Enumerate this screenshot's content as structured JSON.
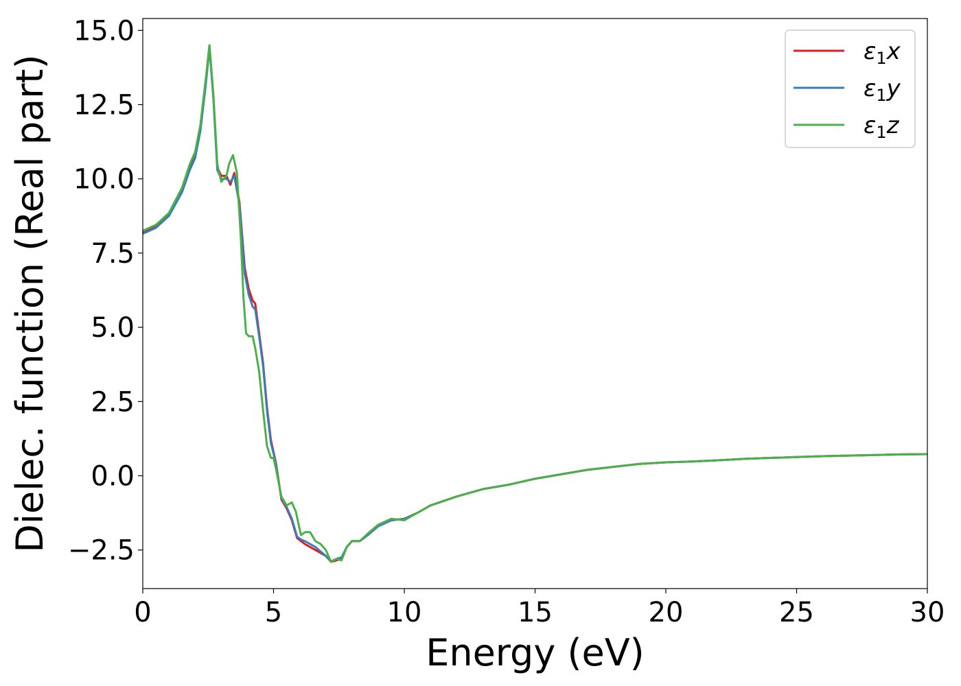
{
  "chart_data": {
    "type": "line",
    "xlabel": "Energy (eV)",
    "ylabel": "Dielec. function (Real part)",
    "xlim": [
      0,
      30
    ],
    "ylim": [
      -3.8,
      15.4
    ],
    "xticks": [
      0,
      5,
      10,
      15,
      20,
      25,
      30
    ],
    "xtick_labels": [
      "0",
      "5",
      "10",
      "15",
      "20",
      "25",
      "30"
    ],
    "yticks": [
      -2.5,
      0.0,
      2.5,
      5.0,
      7.5,
      10.0,
      12.5,
      15.0
    ],
    "ytick_labels": [
      "−2.5",
      "0.0",
      "2.5",
      "5.0",
      "7.5",
      "10.0",
      "12.5",
      "15.0"
    ],
    "grid": false,
    "legend_position": "top-right",
    "series": [
      {
        "name": "ε₁x",
        "legend_base": "ε",
        "legend_sub": "1",
        "legend_tail": "x",
        "color": "#e41a1c",
        "x": [
          0,
          0.5,
          1.0,
          1.5,
          1.8,
          2.0,
          2.2,
          2.4,
          2.55,
          2.7,
          2.85,
          3.0,
          3.2,
          3.35,
          3.5,
          3.7,
          3.9,
          4.05,
          4.2,
          4.3,
          4.45,
          4.6,
          4.75,
          4.9,
          5.0,
          5.1,
          5.3,
          5.5,
          5.7,
          5.9,
          6.05,
          6.2,
          6.4,
          6.6,
          6.8,
          7.0,
          7.2,
          7.4,
          7.6,
          7.8,
          8.0,
          8.3,
          8.6,
          9.0,
          9.5,
          10.0,
          10.5,
          11.0,
          12.0,
          13.0,
          14.0,
          15.0,
          16.0,
          17.0,
          18.0,
          19.0,
          20.0,
          21.0,
          22.0,
          23.0,
          24.0,
          25.0,
          26.0,
          27.0,
          28.0,
          29.0,
          30.0
        ],
        "y": [
          8.2,
          8.4,
          8.8,
          9.6,
          10.4,
          10.8,
          11.7,
          13.2,
          14.5,
          12.8,
          10.4,
          10.1,
          10.1,
          9.8,
          10.2,
          9.2,
          7.0,
          6.3,
          5.9,
          5.8,
          4.8,
          3.8,
          2.3,
          1.2,
          0.8,
          0.4,
          -0.8,
          -1.1,
          -1.5,
          -2.1,
          -2.2,
          -2.3,
          -2.4,
          -2.5,
          -2.6,
          -2.7,
          -2.9,
          -2.85,
          -2.8,
          -2.4,
          -2.2,
          -2.2,
          -2.0,
          -1.7,
          -1.5,
          -1.45,
          -1.25,
          -1.0,
          -0.7,
          -0.45,
          -0.3,
          -0.1,
          0.05,
          0.2,
          0.3,
          0.4,
          0.45,
          0.48,
          0.52,
          0.57,
          0.6,
          0.63,
          0.66,
          0.68,
          0.7,
          0.72,
          0.73
        ]
      },
      {
        "name": "ε₁y",
        "legend_base": "ε",
        "legend_sub": "1",
        "legend_tail": "y",
        "color": "#377eb8",
        "x": [
          0,
          0.5,
          1.0,
          1.5,
          1.8,
          2.0,
          2.2,
          2.4,
          2.55,
          2.7,
          2.85,
          3.0,
          3.2,
          3.35,
          3.5,
          3.7,
          3.9,
          4.05,
          4.2,
          4.3,
          4.45,
          4.6,
          4.75,
          4.9,
          5.0,
          5.1,
          5.3,
          5.5,
          5.7,
          5.9,
          6.05,
          6.2,
          6.4,
          6.6,
          6.8,
          7.0,
          7.2,
          7.4,
          7.6,
          7.8,
          8.0,
          8.3,
          8.6,
          9.0,
          9.5,
          10.0,
          10.5,
          11.0,
          12.0,
          13.0,
          14.0,
          15.0,
          16.0,
          17.0,
          18.0,
          19.0,
          20.0,
          21.0,
          22.0,
          23.0,
          24.0,
          25.0,
          26.0,
          27.0,
          28.0,
          29.0,
          30.0
        ],
        "y": [
          8.15,
          8.35,
          8.75,
          9.55,
          10.3,
          10.7,
          11.6,
          13.1,
          14.4,
          12.7,
          10.3,
          10.0,
          10.0,
          9.9,
          10.1,
          9.1,
          6.8,
          6.1,
          5.7,
          5.6,
          4.7,
          3.7,
          2.2,
          1.1,
          0.75,
          0.35,
          -0.75,
          -1.05,
          -1.45,
          -2.05,
          -2.15,
          -2.2,
          -2.3,
          -2.4,
          -2.55,
          -2.7,
          -2.88,
          -2.8,
          -2.75,
          -2.4,
          -2.2,
          -2.2,
          -2.0,
          -1.7,
          -1.5,
          -1.45,
          -1.25,
          -1.0,
          -0.7,
          -0.45,
          -0.3,
          -0.1,
          0.05,
          0.2,
          0.3,
          0.4,
          0.45,
          0.48,
          0.52,
          0.57,
          0.6,
          0.63,
          0.66,
          0.68,
          0.7,
          0.72,
          0.73
        ]
      },
      {
        "name": "ε₁z",
        "legend_base": "ε",
        "legend_sub": "1",
        "legend_tail": "z",
        "color": "#4daf4a",
        "x": [
          0,
          0.5,
          1.0,
          1.5,
          1.8,
          2.0,
          2.2,
          2.4,
          2.55,
          2.7,
          2.85,
          3.0,
          3.2,
          3.3,
          3.45,
          3.6,
          3.75,
          3.85,
          3.95,
          4.05,
          4.2,
          4.3,
          4.45,
          4.6,
          4.75,
          4.9,
          5.0,
          5.1,
          5.3,
          5.5,
          5.7,
          5.85,
          6.05,
          6.2,
          6.4,
          6.6,
          6.8,
          7.0,
          7.2,
          7.4,
          7.6,
          7.8,
          8.0,
          8.3,
          8.6,
          9.0,
          9.5,
          10.0,
          10.5,
          11.0,
          12.0,
          13.0,
          14.0,
          15.0,
          16.0,
          17.0,
          18.0,
          19.0,
          20.0,
          21.0,
          22.0,
          23.0,
          24.0,
          25.0,
          26.0,
          27.0,
          28.0,
          29.0,
          30.0
        ],
        "y": [
          8.25,
          8.45,
          8.85,
          9.7,
          10.5,
          10.9,
          11.8,
          13.3,
          14.5,
          12.8,
          10.5,
          9.9,
          10.1,
          10.5,
          10.8,
          10.2,
          8.0,
          6.0,
          4.8,
          4.7,
          4.7,
          4.3,
          3.5,
          2.2,
          1.0,
          0.6,
          0.6,
          0.2,
          -0.7,
          -1.0,
          -0.9,
          -1.2,
          -2.0,
          -1.9,
          -1.9,
          -2.2,
          -2.3,
          -2.5,
          -2.9,
          -2.8,
          -2.85,
          -2.4,
          -2.2,
          -2.2,
          -1.95,
          -1.65,
          -1.45,
          -1.5,
          -1.25,
          -1.0,
          -0.7,
          -0.45,
          -0.3,
          -0.1,
          0.05,
          0.2,
          0.3,
          0.4,
          0.45,
          0.48,
          0.52,
          0.57,
          0.6,
          0.63,
          0.66,
          0.68,
          0.7,
          0.72,
          0.73
        ]
      }
    ]
  }
}
